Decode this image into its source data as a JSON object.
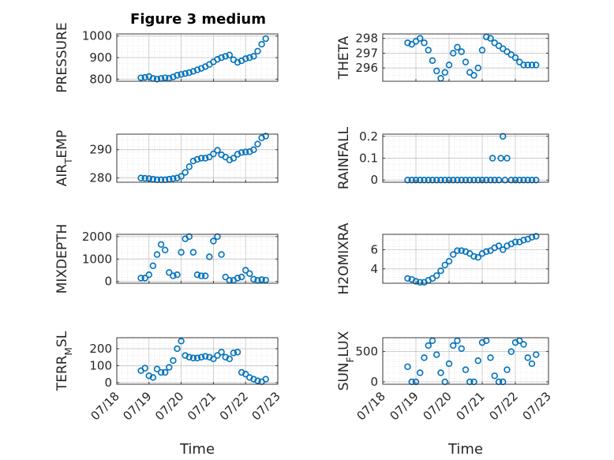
{
  "figure": {
    "title": "Figure 3 medium",
    "marker_color": "#0072BD",
    "axis_color": "#262626",
    "grid": true,
    "minor_grid": true
  },
  "chart_data": [
    {
      "type": "scatter",
      "position": "row1-left",
      "ylabel": "PRESSURE",
      "ylim": [
        790,
        1010
      ],
      "yticks": [
        800,
        900,
        1000
      ],
      "xlim": [
        "07/18",
        "07/23"
      ],
      "xticks": [],
      "x": [
        "07/18 18:00",
        "07/18 21:00",
        "07/19 00:00",
        "07/19 03:00",
        "07/19 06:00",
        "07/19 09:00",
        "07/19 12:00",
        "07/19 15:00",
        "07/19 18:00",
        "07/19 21:00",
        "07/20 00:00",
        "07/20 03:00",
        "07/20 06:00",
        "07/20 09:00",
        "07/20 12:00",
        "07/20 15:00",
        "07/20 18:00",
        "07/20 21:00",
        "07/21 00:00",
        "07/21 03:00",
        "07/21 06:00",
        "07/21 09:00",
        "07/21 12:00",
        "07/21 15:00",
        "07/21 18:00",
        "07/21 21:00",
        "07/22 00:00",
        "07/22 03:00",
        "07/22 06:00",
        "07/22 09:00",
        "07/22 12:00",
        "07/22 15:00"
      ],
      "y": [
        806,
        808,
        812,
        803,
        800,
        803,
        806,
        804,
        810,
        818,
        822,
        826,
        830,
        836,
        843,
        850,
        858,
        868,
        880,
        892,
        900,
        906,
        912,
        890,
        878,
        885,
        895,
        900,
        906,
        930,
        962,
        988
      ]
    },
    {
      "type": "scatter",
      "position": "row1-right",
      "ylabel": "THETA",
      "ylim": [
        295.1,
        298.3
      ],
      "yticks": [
        296,
        297,
        298
      ],
      "xlim": [
        "07/18",
        "07/23"
      ],
      "xticks": [],
      "x": [
        "07/18 18:00",
        "07/18 21:00",
        "07/19 00:00",
        "07/19 03:00",
        "07/19 06:00",
        "07/19 09:00",
        "07/19 12:00",
        "07/19 15:00",
        "07/19 18:00",
        "07/19 21:00",
        "07/20 00:00",
        "07/20 03:00",
        "07/20 06:00",
        "07/20 09:00",
        "07/20 12:00",
        "07/20 15:00",
        "07/20 18:00",
        "07/20 21:00",
        "07/21 00:00",
        "07/21 03:00",
        "07/21 06:00",
        "07/21 09:00",
        "07/21 12:00",
        "07/21 15:00",
        "07/21 18:00",
        "07/21 21:00",
        "07/22 00:00",
        "07/22 03:00",
        "07/22 06:00",
        "07/22 09:00",
        "07/22 12:00",
        "07/22 15:00"
      ],
      "y": [
        297.7,
        297.6,
        297.8,
        298.0,
        297.7,
        297.2,
        296.5,
        295.8,
        295.3,
        295.7,
        296.2,
        297.0,
        297.4,
        297.1,
        296.4,
        295.7,
        295.5,
        296.0,
        297.2,
        298.1,
        298.0,
        297.7,
        297.5,
        297.3,
        297.1,
        296.9,
        296.7,
        296.4,
        296.2,
        296.2,
        296.2,
        296.2
      ]
    },
    {
      "type": "scatter",
      "position": "row2-left",
      "ylabel": "AIR",
      "ylabel_sub": "T",
      "ylabel_rest": "EMP",
      "ylim": [
        278.5,
        295.5
      ],
      "yticks": [
        280,
        290
      ],
      "xlim": [
        "07/18",
        "07/23"
      ],
      "xticks": [],
      "x": [
        "07/18 18:00",
        "07/18 21:00",
        "07/19 00:00",
        "07/19 03:00",
        "07/19 06:00",
        "07/19 09:00",
        "07/19 12:00",
        "07/19 15:00",
        "07/19 18:00",
        "07/19 21:00",
        "07/20 00:00",
        "07/20 03:00",
        "07/20 06:00",
        "07/20 09:00",
        "07/20 12:00",
        "07/20 15:00",
        "07/20 18:00",
        "07/20 21:00",
        "07/21 00:00",
        "07/21 03:00",
        "07/21 06:00",
        "07/21 09:00",
        "07/21 12:00",
        "07/21 15:00",
        "07/21 18:00",
        "07/21 21:00",
        "07/22 00:00",
        "07/22 03:00",
        "07/22 06:00",
        "07/22 09:00",
        "07/22 12:00",
        "07/22 15:00"
      ],
      "y": [
        280.0,
        279.9,
        279.8,
        279.6,
        279.4,
        279.4,
        279.4,
        279.6,
        279.8,
        280.0,
        280.6,
        282.0,
        284.0,
        286.0,
        286.6,
        287.0,
        287.0,
        287.4,
        288.5,
        289.8,
        288.2,
        287.4,
        286.4,
        287.0,
        288.4,
        289.0,
        289.2,
        289.3,
        290.0,
        292.0,
        294.2,
        294.8
      ]
    },
    {
      "type": "scatter",
      "position": "row2-right",
      "ylabel": "RAINFALL",
      "ylim": [
        -0.01,
        0.21
      ],
      "yticks": [
        0,
        0.1,
        0.2
      ],
      "ytick_labels": [
        "0",
        "0.1",
        "0.2"
      ],
      "xlim": [
        "07/18",
        "07/23"
      ],
      "xticks": [],
      "x": [
        "07/18 18:00",
        "07/18 21:00",
        "07/19 00:00",
        "07/19 03:00",
        "07/19 06:00",
        "07/19 09:00",
        "07/19 12:00",
        "07/19 15:00",
        "07/19 18:00",
        "07/19 21:00",
        "07/20 00:00",
        "07/20 03:00",
        "07/20 06:00",
        "07/20 09:00",
        "07/20 12:00",
        "07/20 15:00",
        "07/20 18:00",
        "07/20 21:00",
        "07/21 00:00",
        "07/21 03:00",
        "07/21 06:00",
        "07/21 07:30",
        "07/21 09:00",
        "07/21 12:00",
        "07/21 13:30",
        "07/21 15:00",
        "07/21 16:30",
        "07/21 18:00",
        "07/21 21:00",
        "07/22 00:00",
        "07/22 03:00",
        "07/22 06:00",
        "07/22 09:00",
        "07/22 12:00",
        "07/22 15:00"
      ],
      "y": [
        0,
        0,
        0,
        0,
        0,
        0,
        0,
        0,
        0,
        0,
        0,
        0,
        0,
        0,
        0,
        0,
        0,
        0,
        0,
        0,
        0,
        0.1,
        0,
        0,
        0.1,
        0.2,
        0,
        0.1,
        0,
        0,
        0,
        0,
        0,
        0,
        0
      ]
    },
    {
      "type": "scatter",
      "position": "row3-left",
      "ylabel": "MIXDEPTH",
      "ylim": [
        -80,
        2100
      ],
      "yticks": [
        0,
        1000,
        2000
      ],
      "xlim": [
        "07/18",
        "07/23"
      ],
      "xticks": [],
      "x": [
        "07/18 18:00",
        "07/18 21:00",
        "07/19 00:00",
        "07/19 03:00",
        "07/19 06:00",
        "07/19 09:00",
        "07/19 12:00",
        "07/19 15:00",
        "07/19 18:00",
        "07/19 21:00",
        "07/20 00:00",
        "07/20 03:00",
        "07/20 06:00",
        "07/20 09:00",
        "07/20 12:00",
        "07/20 15:00",
        "07/20 18:00",
        "07/20 21:00",
        "07/21 00:00",
        "07/21 03:00",
        "07/21 06:00",
        "07/21 09:00",
        "07/21 12:00",
        "07/21 15:00",
        "07/21 18:00",
        "07/21 21:00",
        "07/22 00:00",
        "07/22 03:00",
        "07/22 06:00",
        "07/22 09:00",
        "07/22 12:00",
        "07/22 15:00"
      ],
      "y": [
        150,
        150,
        300,
        700,
        1200,
        1650,
        1400,
        400,
        250,
        300,
        1300,
        1900,
        2000,
        1300,
        300,
        250,
        250,
        1100,
        1800,
        2000,
        1200,
        200,
        50,
        50,
        150,
        200,
        500,
        350,
        100,
        50,
        80,
        60
      ]
    },
    {
      "type": "scatter",
      "position": "row3-right",
      "ylabel": "H2OMIXRA",
      "ylim": [
        2.5,
        7.6
      ],
      "yticks": [
        4,
        6
      ],
      "xlim": [
        "07/18",
        "07/23"
      ],
      "xticks": [],
      "x": [
        "07/18 18:00",
        "07/18 21:00",
        "07/19 00:00",
        "07/19 03:00",
        "07/19 06:00",
        "07/19 09:00",
        "07/19 12:00",
        "07/19 15:00",
        "07/19 18:00",
        "07/19 21:00",
        "07/20 00:00",
        "07/20 03:00",
        "07/20 06:00",
        "07/20 09:00",
        "07/20 12:00",
        "07/20 15:00",
        "07/20 18:00",
        "07/20 21:00",
        "07/21 00:00",
        "07/21 03:00",
        "07/21 06:00",
        "07/21 09:00",
        "07/21 12:00",
        "07/21 15:00",
        "07/21 18:00",
        "07/21 21:00",
        "07/22 00:00",
        "07/22 03:00",
        "07/22 06:00",
        "07/22 09:00",
        "07/22 12:00",
        "07/22 15:00"
      ],
      "y": [
        3.0,
        2.9,
        2.7,
        2.6,
        2.6,
        2.8,
        3.0,
        3.3,
        3.8,
        4.4,
        4.8,
        5.5,
        5.9,
        5.9,
        5.8,
        5.6,
        5.3,
        5.2,
        5.6,
        5.8,
        5.9,
        6.2,
        6.4,
        6.0,
        6.4,
        6.6,
        6.8,
        6.8,
        7.0,
        7.1,
        7.3,
        7.4
      ]
    },
    {
      "type": "scatter",
      "position": "row4-left",
      "ylabel": "TERR",
      "ylabel_sub": "M",
      "ylabel_rest": "SL",
      "ylim": [
        -10,
        265
      ],
      "yticks": [
        0,
        100,
        200
      ],
      "xlim": [
        "07/18",
        "07/23"
      ],
      "xticks": [
        "07/18",
        "07/19",
        "07/20",
        "07/21",
        "07/22",
        "07/23"
      ],
      "xlabel": "Time",
      "x": [
        "07/18 18:00",
        "07/18 21:00",
        "07/19 00:00",
        "07/19 03:00",
        "07/19 06:00",
        "07/19 09:00",
        "07/19 12:00",
        "07/19 15:00",
        "07/19 18:00",
        "07/19 21:00",
        "07/20 00:00",
        "07/20 03:00",
        "07/20 06:00",
        "07/20 09:00",
        "07/20 12:00",
        "07/20 15:00",
        "07/20 18:00",
        "07/20 21:00",
        "07/21 00:00",
        "07/21 03:00",
        "07/21 06:00",
        "07/21 09:00",
        "07/21 12:00",
        "07/21 15:00",
        "07/21 18:00",
        "07/21 21:00",
        "07/22 00:00",
        "07/22 03:00",
        "07/22 06:00",
        "07/22 09:00",
        "07/22 12:00",
        "07/22 15:00"
      ],
      "y": [
        70,
        85,
        40,
        30,
        80,
        60,
        60,
        90,
        130,
        200,
        245,
        160,
        150,
        145,
        145,
        150,
        155,
        150,
        140,
        160,
        180,
        150,
        140,
        175,
        180,
        60,
        50,
        30,
        20,
        10,
        5,
        20
      ]
    },
    {
      "type": "scatter",
      "position": "row4-right",
      "ylabel": "SUN",
      "ylabel_sub": "F",
      "ylabel_rest": "LUX",
      "ylim": [
        -40,
        730
      ],
      "yticks": [
        0,
        500
      ],
      "xlim": [
        "07/18",
        "07/23"
      ],
      "xticks": [
        "07/18",
        "07/19",
        "07/20",
        "07/21",
        "07/22",
        "07/23"
      ],
      "xlabel": "Time",
      "x": [
        "07/18 18:00",
        "07/18 21:00",
        "07/19 00:00",
        "07/19 03:00",
        "07/19 06:00",
        "07/19 09:00",
        "07/19 12:00",
        "07/19 15:00",
        "07/19 18:00",
        "07/19 21:00",
        "07/20 00:00",
        "07/20 03:00",
        "07/20 06:00",
        "07/20 09:00",
        "07/20 12:00",
        "07/20 15:00",
        "07/20 18:00",
        "07/20 21:00",
        "07/21 00:00",
        "07/21 03:00",
        "07/21 06:00",
        "07/21 09:00",
        "07/21 12:00",
        "07/21 15:00",
        "07/21 18:00",
        "07/21 21:00",
        "07/22 00:00",
        "07/22 03:00",
        "07/22 06:00",
        "07/22 09:00",
        "07/22 12:00",
        "07/22 15:00"
      ],
      "y": [
        250,
        0,
        0,
        150,
        400,
        600,
        680,
        450,
        150,
        0,
        300,
        600,
        680,
        550,
        200,
        0,
        0,
        350,
        650,
        680,
        400,
        100,
        0,
        0,
        200,
        500,
        650,
        680,
        620,
        400,
        300,
        450
      ]
    }
  ]
}
